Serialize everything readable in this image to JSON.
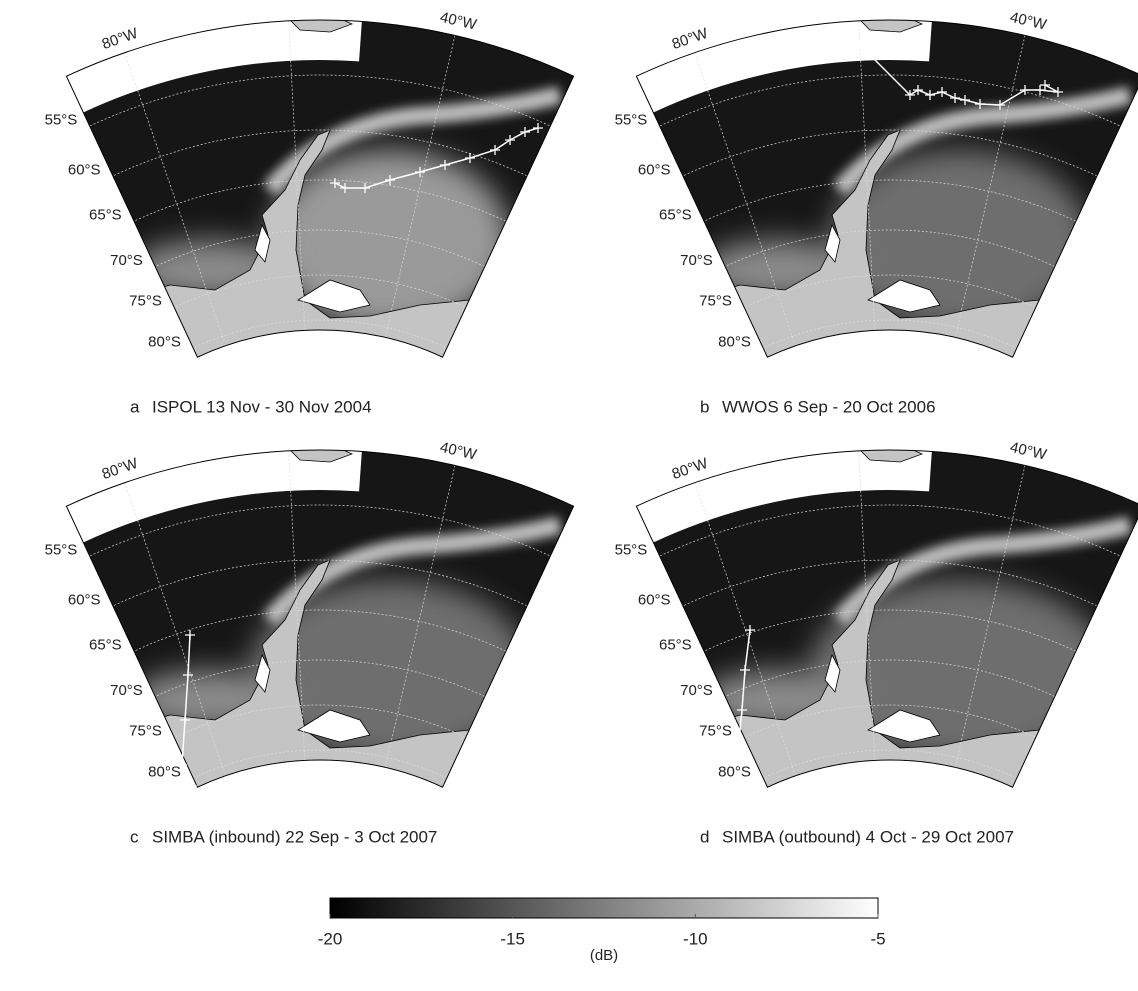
{
  "panels": [
    {
      "letter": "a",
      "caption": "ISPOL 13 Nov - 30 Nov 2004"
    },
    {
      "letter": "b",
      "caption": "WWOS 6 Sep - 20 Oct 2006"
    },
    {
      "letter": "c",
      "caption": "SIMBA (inbound) 22 Sep - 3 Oct 2007"
    },
    {
      "letter": "d",
      "caption": "SIMBA (outbound) 4 Oct - 29 Oct 2007"
    }
  ],
  "lat_labels": [
    "55°S",
    "60°S",
    "65°S",
    "70°S",
    "75°S",
    "80°S"
  ],
  "lon_labels": [
    "80°W",
    "40°W"
  ],
  "colorbar": {
    "min": -20,
    "max": -5,
    "ticks": [
      -20,
      -15,
      -10,
      -5
    ],
    "label": "(dB)"
  }
}
